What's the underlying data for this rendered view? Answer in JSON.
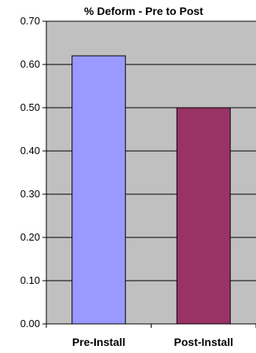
{
  "chart_data": {
    "type": "bar",
    "title": "% Deform - Pre to Post",
    "xlabel": "",
    "ylabel": "",
    "categories": [
      "Pre-Install",
      "Post-Install"
    ],
    "values": [
      0.62,
      0.5
    ],
    "ylim": [
      0,
      0.7
    ],
    "yticks": [
      "0.00",
      "0.10",
      "0.20",
      "0.30",
      "0.40",
      "0.50",
      "0.60",
      "0.70"
    ],
    "grid": true,
    "legend": "none",
    "colors": {
      "plot_background": "#c0c0c0",
      "gridline": "#000000",
      "bars": [
        "#9999ff",
        "#993366"
      ],
      "bar_outline": "#000000"
    }
  }
}
